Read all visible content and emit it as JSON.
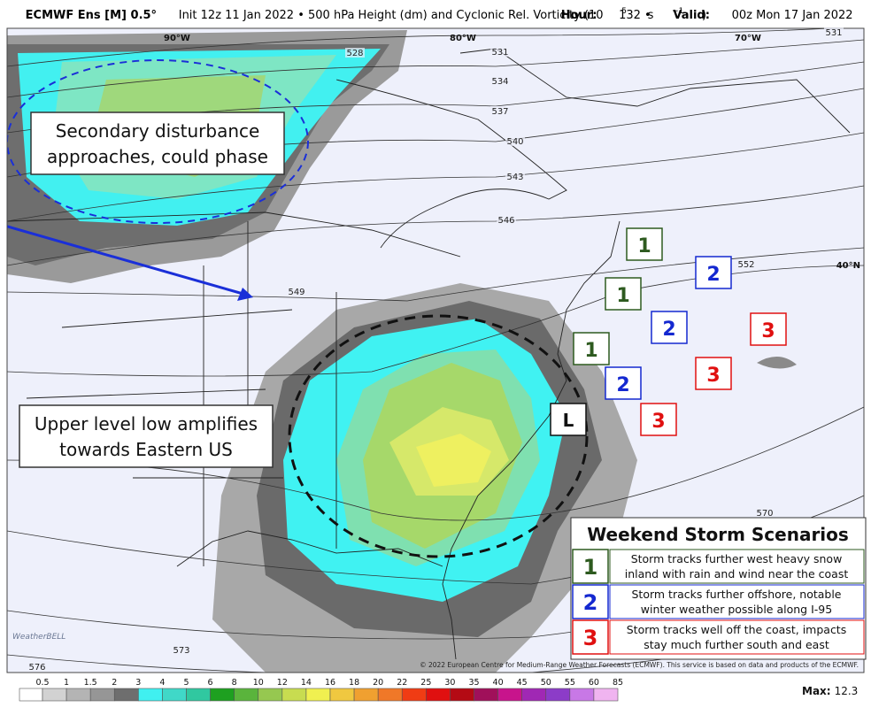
{
  "header": {
    "model": "ECMWF Ens [M] 0.5°",
    "description": "Init 12z 11 Jan 2022 • 500 hPa Height (dm) and Cyclonic Rel. Vorticity (10",
    "exponent_1": "5",
    "unit": "s",
    "exponent_2": "−1",
    "close": ")",
    "hour_label": "Hour:",
    "hour": "132 •",
    "valid_label": "Valid:",
    "valid": "00z Mon 17 Jan 2022"
  },
  "graticule": [
    "90°W",
    "80°W",
    "70°W",
    "40°N"
  ],
  "contours": [
    528,
    531,
    534,
    537,
    540,
    543,
    546,
    549,
    552,
    570,
    573,
    576,
    531
  ],
  "annotations": [
    {
      "lines": [
        "Secondary disturbance",
        "approaches, could phase"
      ]
    },
    {
      "lines": [
        "Upper level low amplifies",
        "towards Eastern US"
      ]
    }
  ],
  "low_label": "L",
  "scenario_markers": [
    "1",
    "1",
    "1",
    "2",
    "2",
    "2",
    "3",
    "3",
    "3"
  ],
  "legend": {
    "title": "Weekend Storm Scenarios",
    "items": [
      {
        "number": "1",
        "lines": [
          "Storm tracks further west heavy snow",
          "inland with rain and wind near the coast"
        ]
      },
      {
        "number": "2",
        "lines": [
          "Storm tracks further offshore, notable",
          "winter weather possible along I-95"
        ]
      },
      {
        "number": "3",
        "lines": [
          "Storm tracks well off the coast, impacts",
          "stay much further south and east"
        ]
      }
    ]
  },
  "colorbar": {
    "ticks": [
      0.5,
      1,
      1.5,
      2,
      3,
      4,
      5,
      6,
      8,
      10,
      12,
      14,
      16,
      18,
      20,
      22,
      25,
      30,
      35,
      40,
      45,
      50,
      55,
      60,
      85
    ],
    "max_label": "Max:",
    "max": 12.3
  },
  "credit": "© 2022 European Centre for Medium-Range Weather Forecasts (ECMWF). This service is based on data and products of the ECMWF.",
  "logo": "WeatherBELL"
}
